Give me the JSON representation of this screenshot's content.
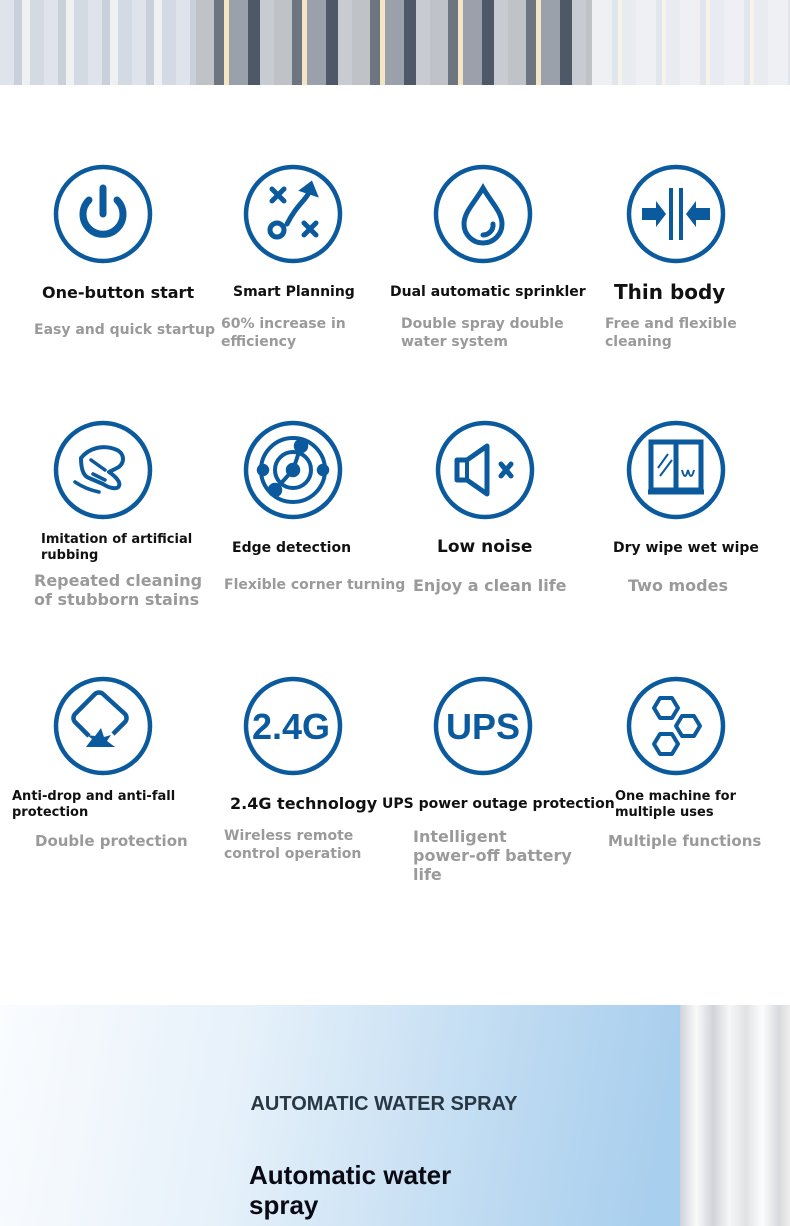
{
  "accent_color": "#0b5a9e",
  "features": [
    {
      "icon": "power-icon",
      "title": "One-button start",
      "subtitle": "Easy and quick startup"
    },
    {
      "icon": "route-planning-icon",
      "title": "Smart Planning",
      "subtitle": "60% increase in efficiency"
    },
    {
      "icon": "water-drop-icon",
      "title": "Dual automatic sprinkler",
      "subtitle": "Double spray double water system"
    },
    {
      "icon": "thin-body-arrows-icon",
      "title": "Thin body",
      "subtitle": "Free and flexible cleaning"
    },
    {
      "icon": "hand-wipe-icon",
      "title": "Imitation of artificial rubbing",
      "subtitle": "Repeated cleaning of stubborn stains"
    },
    {
      "icon": "radar-sensor-icon",
      "title": "Edge detection",
      "subtitle": "Flexible corner turning"
    },
    {
      "icon": "speaker-mute-icon",
      "title": "Low noise",
      "subtitle": "Enjoy a clean life"
    },
    {
      "icon": "window-icon",
      "title": "Dry wipe wet wipe",
      "subtitle": "Two modes"
    },
    {
      "icon": "anti-drop-icon",
      "title": "Anti-drop and anti-fall protection",
      "subtitle": "Double protection"
    },
    {
      "icon": "wireless-2-4g-icon",
      "icon_text": "2.4G",
      "title": "2.4G technology",
      "subtitle": "Wireless remote control operation"
    },
    {
      "icon": "ups-icon",
      "icon_text": "UPS",
      "title": "UPS power outage protection",
      "subtitle": "Intelligent power-off battery life"
    },
    {
      "icon": "hexagons-icon",
      "title": "One machine for multiple uses",
      "subtitle": "Multiple functions"
    }
  ],
  "section": {
    "heading": "AUTOMATIC WATER SPRAY",
    "title": "Automatic water spray"
  }
}
